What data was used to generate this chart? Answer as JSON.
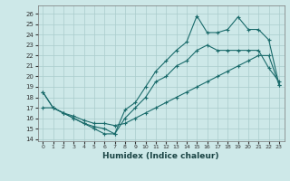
{
  "xlabel": "Humidex (Indice chaleur)",
  "xlim": [
    -0.5,
    23.5
  ],
  "ylim": [
    13.8,
    26.8
  ],
  "yticks": [
    14,
    15,
    16,
    17,
    18,
    19,
    20,
    21,
    22,
    23,
    24,
    25,
    26
  ],
  "xticks": [
    0,
    1,
    2,
    3,
    4,
    5,
    6,
    7,
    8,
    9,
    10,
    11,
    12,
    13,
    14,
    15,
    16,
    17,
    18,
    19,
    20,
    21,
    22,
    23
  ],
  "bg_color": "#cde8e8",
  "grid_color": "#aacccc",
  "line_color": "#1a6b6b",
  "line1_x": [
    0,
    1,
    2,
    3,
    4,
    5,
    6,
    7,
    8,
    9,
    10,
    11,
    12,
    13,
    14,
    15,
    16,
    17,
    18,
    19,
    20,
    21,
    22,
    23
  ],
  "line1_y": [
    18.5,
    17.0,
    16.5,
    16.0,
    15.5,
    15.2,
    15.0,
    14.5,
    16.8,
    17.5,
    19.0,
    20.5,
    21.5,
    22.5,
    23.3,
    25.8,
    24.2,
    24.2,
    24.5,
    25.7,
    24.5,
    24.5,
    23.5,
    19.2
  ],
  "line2_x": [
    0,
    1,
    2,
    3,
    4,
    5,
    6,
    7,
    8,
    9,
    10,
    11,
    12,
    13,
    14,
    15,
    16,
    17,
    18,
    19,
    20,
    21,
    22,
    23
  ],
  "line2_y": [
    18.5,
    17.0,
    16.5,
    16.0,
    15.5,
    15.0,
    14.5,
    14.5,
    16.0,
    17.0,
    18.0,
    19.5,
    20.0,
    21.0,
    21.5,
    22.5,
    23.0,
    22.5,
    22.5,
    22.5,
    22.5,
    22.5,
    20.8,
    19.5
  ],
  "line3_x": [
    0,
    1,
    2,
    3,
    4,
    5,
    6,
    7,
    8,
    9,
    10,
    11,
    12,
    13,
    14,
    15,
    16,
    17,
    18,
    19,
    20,
    21,
    22,
    23
  ],
  "line3_y": [
    17.0,
    17.0,
    16.5,
    16.2,
    15.8,
    15.5,
    15.5,
    15.3,
    15.5,
    16.0,
    16.5,
    17.0,
    17.5,
    18.0,
    18.5,
    19.0,
    19.5,
    20.0,
    20.5,
    21.0,
    21.5,
    22.0,
    22.0,
    19.2
  ]
}
